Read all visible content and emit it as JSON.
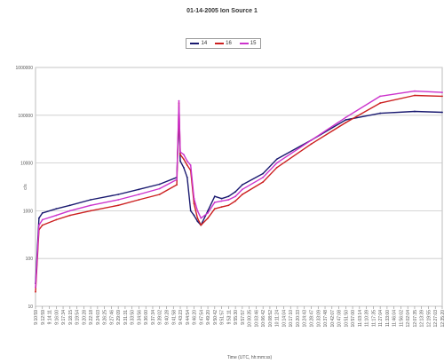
{
  "chart_data": {
    "type": "line",
    "title": "01-14-2005 Ion Source 1",
    "xlabel": "Time (UTC, hh:mm:ss)",
    "ylabel": "c/s",
    "yscale": "log",
    "ylim": [
      10,
      1000000
    ],
    "y_ticks": [
      "10",
      "100",
      "1000",
      "10000",
      "100000",
      "1000000"
    ],
    "x_ticks": [
      "9:10:59",
      "9:12:59",
      "9:14:11",
      "9:16:00",
      "9:17:34",
      "9:18:15",
      "9:19:54",
      "9:20:28",
      "9:22:18",
      "9:24:03",
      "9:26:25",
      "9:27:46",
      "9:29:09",
      "9:31:31",
      "9:33:50",
      "9:34:56",
      "9:36:00",
      "9:37:34",
      "9:39:02",
      "9:40:28",
      "9:41:58",
      "9:43:23",
      "9:44:54",
      "9:46:20",
      "9:47:54",
      "9:49:20",
      "9:50:42",
      "9:51:57",
      "9:53:11",
      "9:55:30",
      "9:57:57",
      "10:00:35",
      "10:03:46",
      "10:06:42",
      "10:08:52",
      "10:11:24",
      "10:14:04",
      "10:17:10",
      "10:20:33",
      "10:24:43",
      "10:28:47",
      "10:33:09",
      "10:37:48",
      "10:42:07",
      "10:47:08",
      "10:51:50",
      "10:57:00",
      "11:03:14",
      "11:10:39",
      "11:17:35",
      "11:27:04",
      "11:33:00",
      "11:46:04",
      "11:56:02",
      "12:02:04",
      "12:07:35",
      "12:13:39",
      "12:19:55",
      "12:27:03",
      "12:35:20"
    ],
    "x_positions": [
      0,
      1,
      2,
      3,
      4,
      5,
      6,
      7,
      8,
      9,
      10,
      11,
      12,
      13,
      14,
      15,
      16,
      17,
      18,
      19,
      20,
      21,
      22,
      23,
      24,
      25,
      26,
      27,
      28,
      29,
      30,
      31,
      32,
      33,
      34,
      35,
      36,
      37,
      38,
      39,
      40,
      41,
      42,
      43,
      44,
      45,
      46,
      47,
      48,
      49,
      50,
      51,
      52,
      53,
      54,
      55,
      56,
      57,
      58,
      59
    ],
    "grid": true,
    "legend_position": "top-center",
    "series": [
      {
        "name": "14",
        "color": "#1a1a70",
        "x": [
          0,
          0.5,
          1,
          3,
          5,
          8,
          12,
          15,
          18,
          20.5,
          20.8,
          21,
          21.5,
          22,
          22.5,
          23,
          23.5,
          24,
          25,
          26,
          27,
          28,
          29,
          30,
          33,
          35,
          40,
          45,
          50,
          55,
          59
        ],
        "values": [
          30,
          700,
          900,
          1100,
          1300,
          1700,
          2200,
          2800,
          3600,
          5000,
          100000,
          11000,
          8000,
          5000,
          1000,
          800,
          600,
          500,
          1000,
          2000,
          1800,
          2000,
          2500,
          3500,
          6000,
          12000,
          30000,
          80000,
          110000,
          120000,
          115000
        ]
      },
      {
        "name": "16",
        "color": "#cc2020",
        "x": [
          0,
          0.5,
          1,
          3,
          5,
          8,
          12,
          15,
          18,
          20.5,
          20.8,
          21,
          21.5,
          22,
          22.5,
          23,
          23.5,
          24,
          25,
          26,
          27,
          28,
          29,
          30,
          33,
          35,
          40,
          45,
          50,
          55,
          59
        ],
        "values": [
          20,
          400,
          500,
          650,
          800,
          1000,
          1300,
          1700,
          2200,
          3500,
          180000,
          15000,
          12000,
          9000,
          7000,
          1400,
          700,
          500,
          700,
          1100,
          1200,
          1300,
          1600,
          2200,
          4000,
          8000,
          25000,
          70000,
          180000,
          260000,
          250000
        ]
      },
      {
        "name": "15",
        "color": "#cc33cc",
        "x": [
          0,
          0.5,
          1,
          3,
          5,
          8,
          12,
          15,
          18,
          20.5,
          20.8,
          21,
          21.5,
          22,
          22.5,
          23,
          23.5,
          24,
          25,
          26,
          27,
          28,
          29,
          30,
          33,
          35,
          40,
          45,
          50,
          55,
          59
        ],
        "values": [
          25,
          500,
          650,
          800,
          1000,
          1300,
          1700,
          2200,
          2900,
          4500,
          200000,
          17000,
          15000,
          11000,
          9000,
          1800,
          1000,
          700,
          900,
          1500,
          1600,
          1700,
          2000,
          2800,
          5000,
          10000,
          30000,
          90000,
          250000,
          320000,
          300000
        ]
      }
    ]
  }
}
